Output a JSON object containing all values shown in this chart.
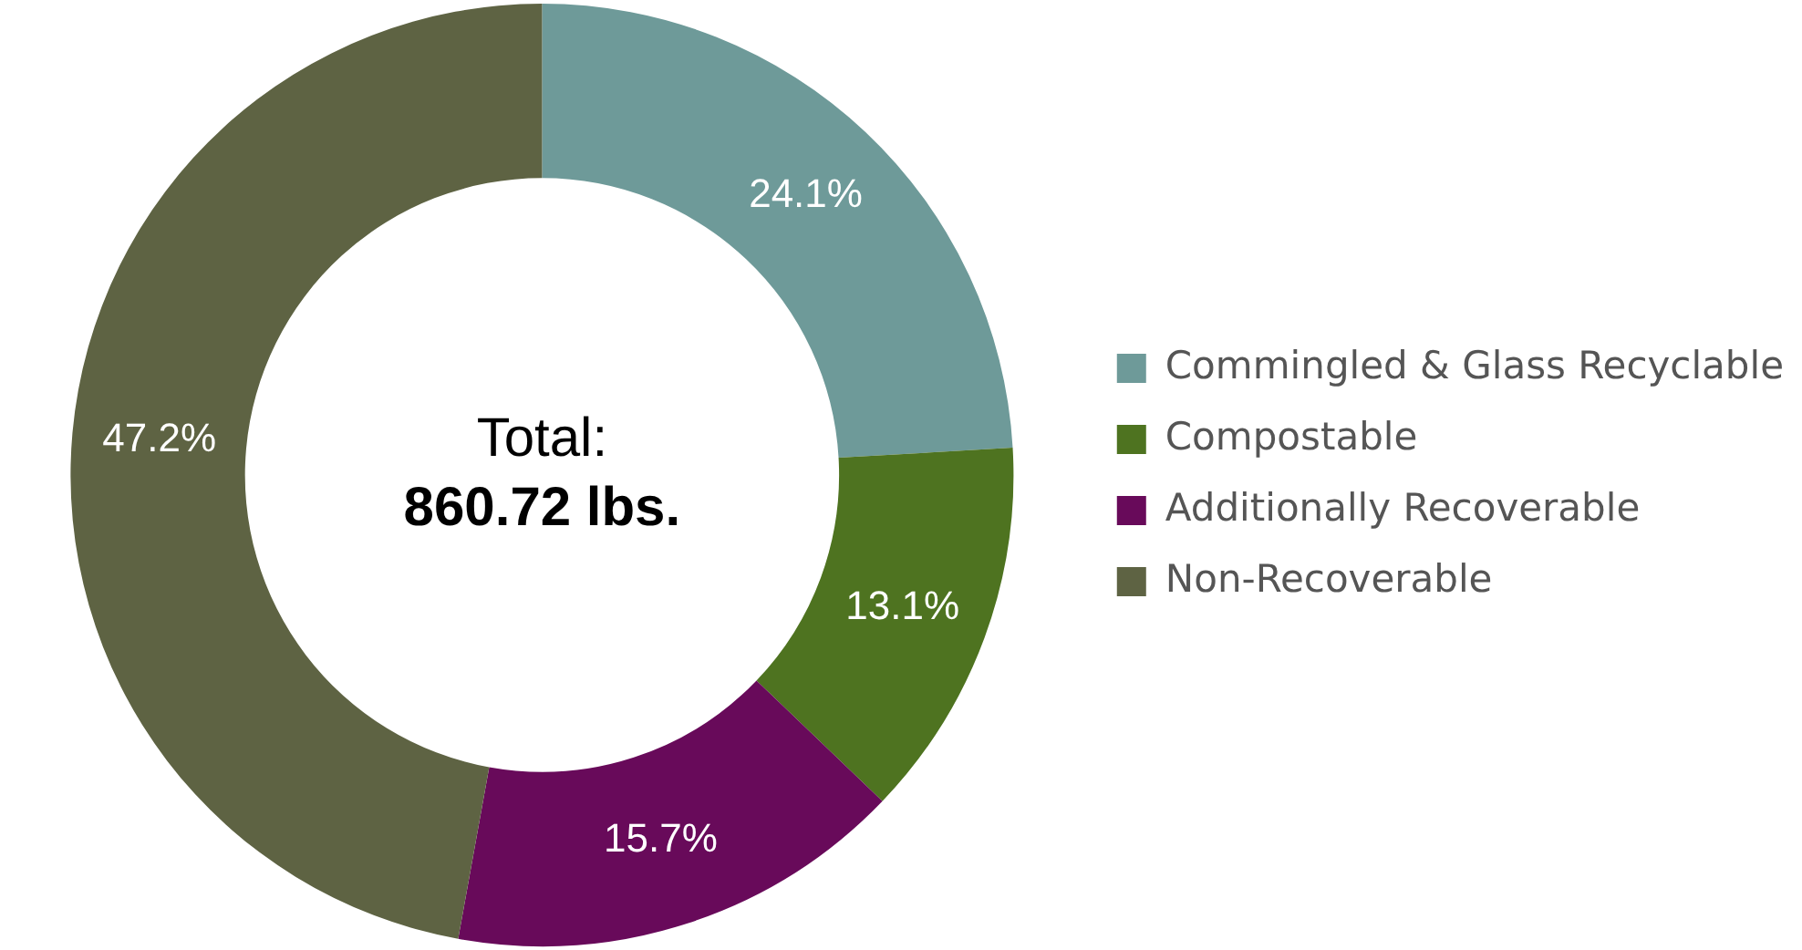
{
  "chart_data": {
    "type": "donut",
    "categories": [
      "Commingled & Glass Recyclable",
      "Compostable",
      "Additionally Recoverable",
      "Non-Recoverable"
    ],
    "values": [
      24.1,
      13.1,
      15.7,
      47.2
    ],
    "value_labels": [
      "24.1%",
      "13.1%",
      "15.7%",
      "47.2%"
    ],
    "colors": [
      "#6e9a99",
      "#4e7320",
      "#680a5a",
      "#5e6343"
    ],
    "annotations": [
      "Total:",
      "860.72 lbs."
    ],
    "legend": "right"
  }
}
